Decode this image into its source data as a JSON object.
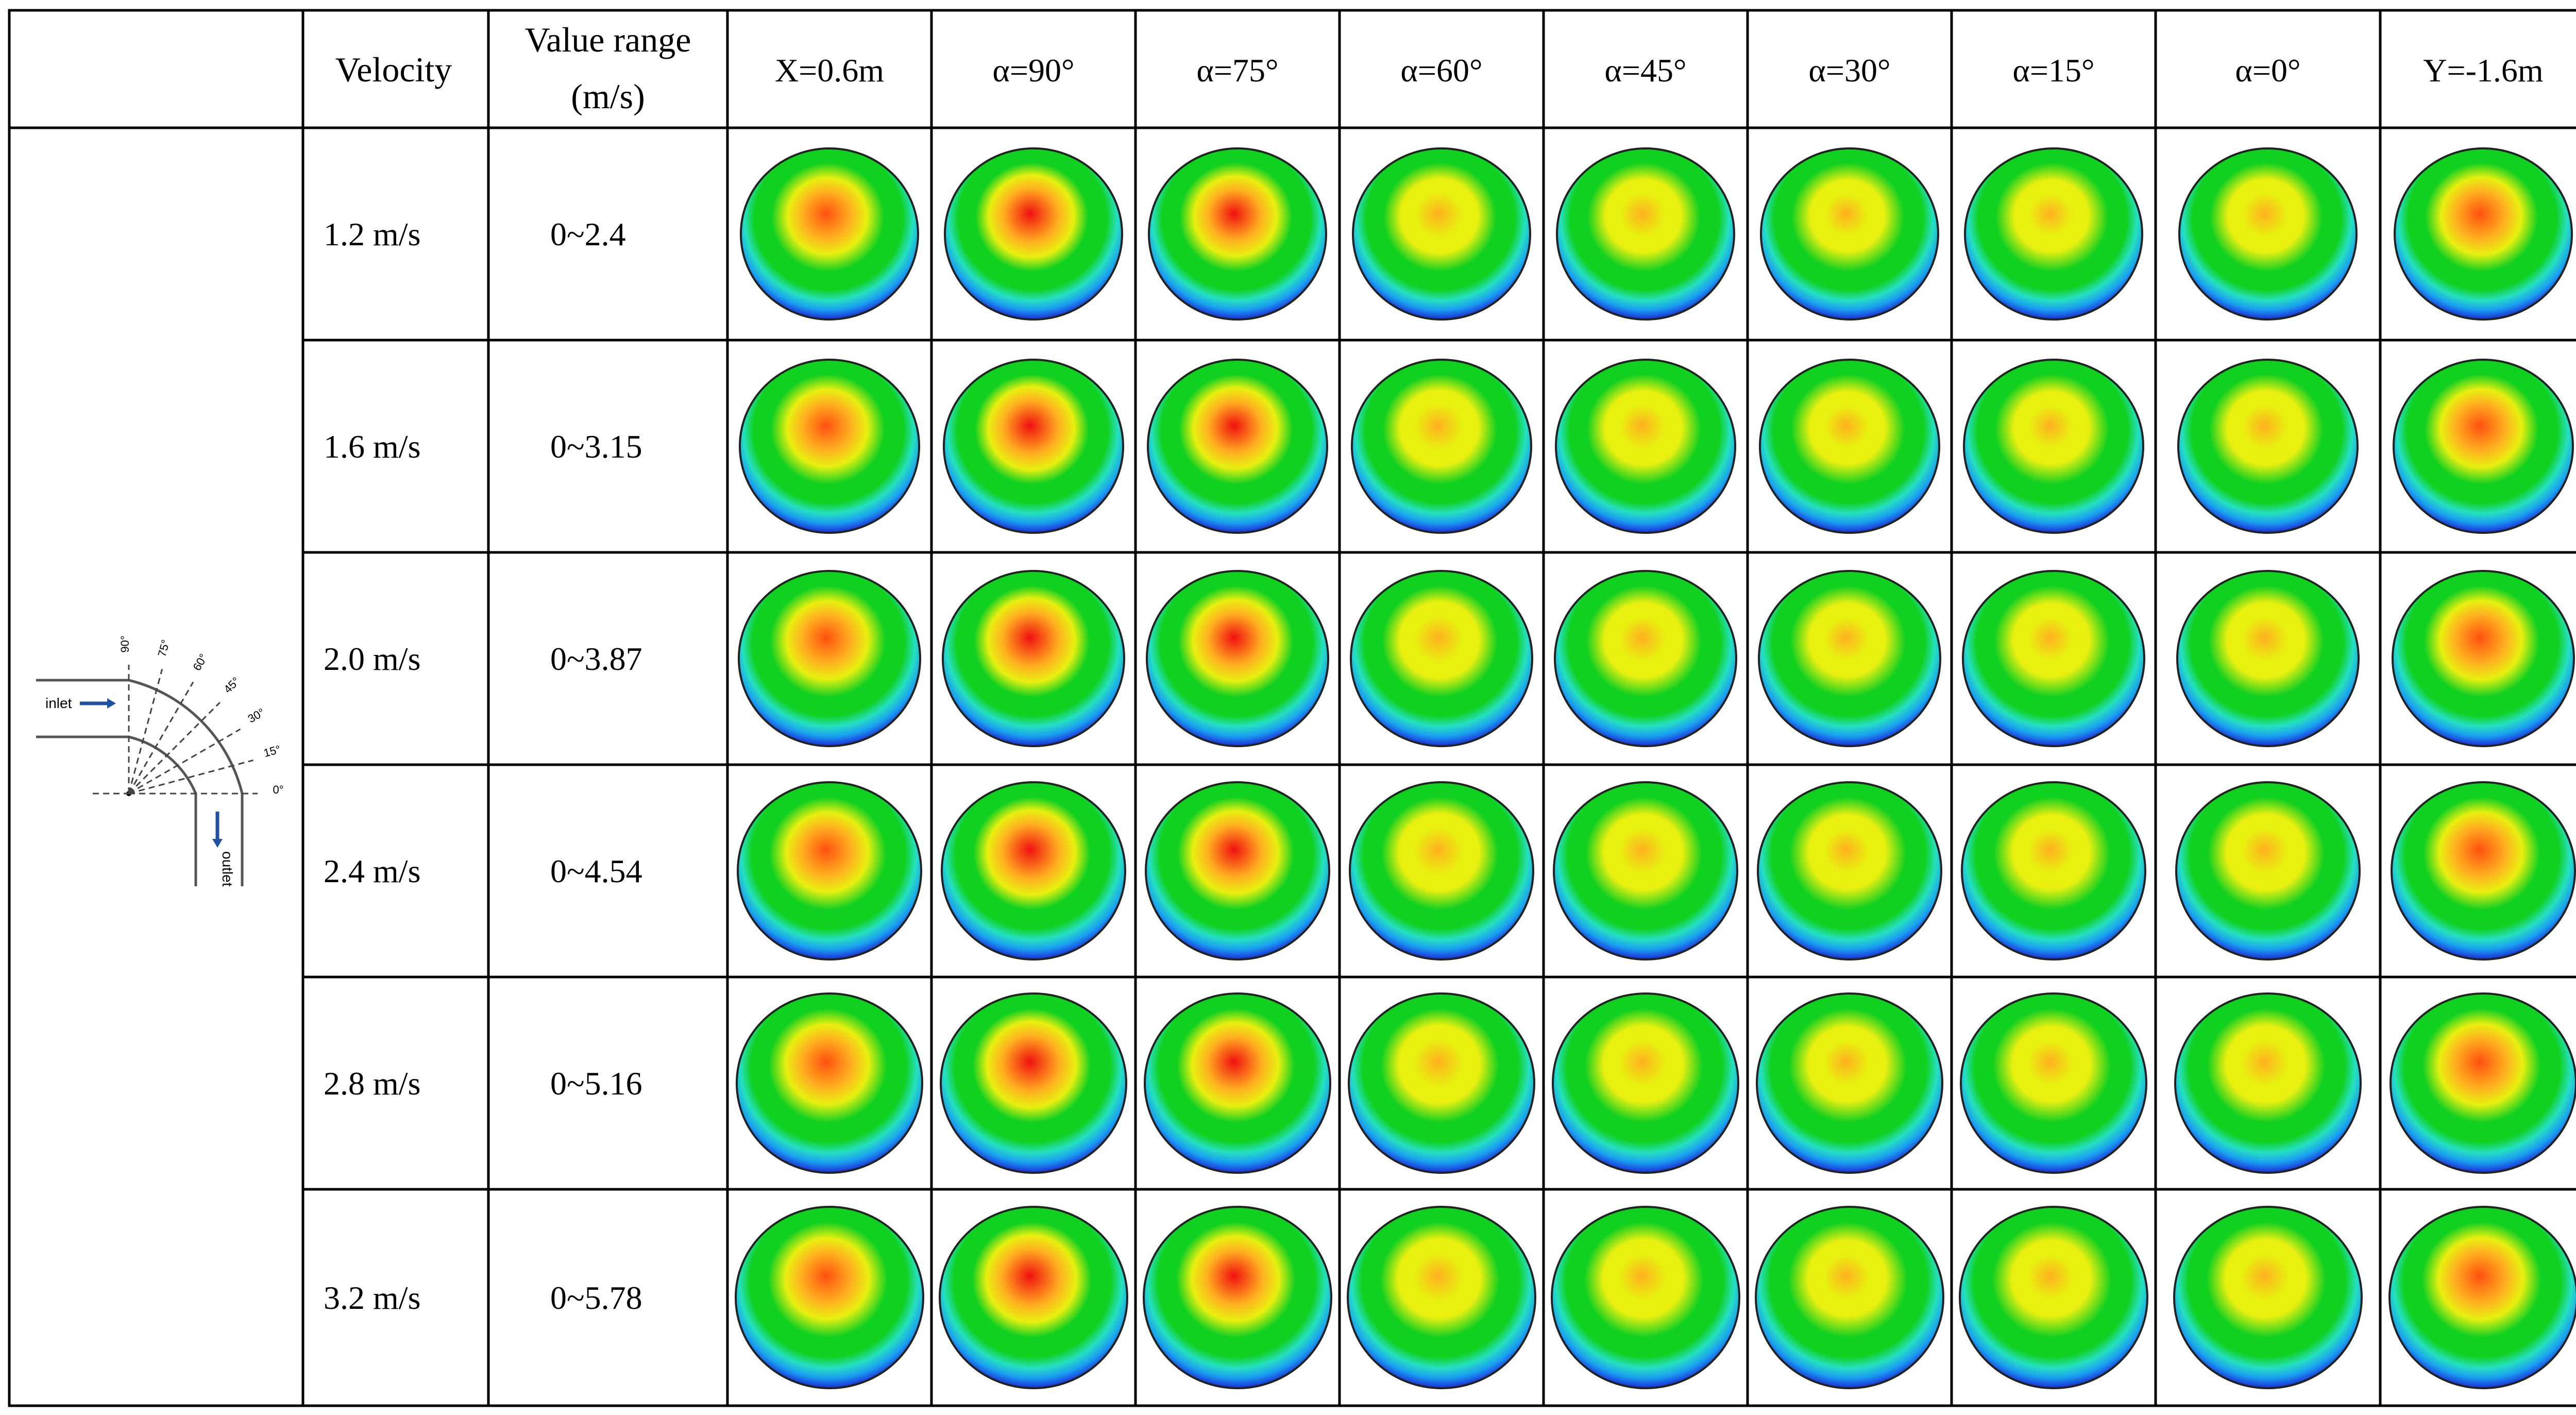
{
  "table": {
    "headers": {
      "velocity": "Velocity",
      "value_range_line1": "Value range",
      "value_range_line2": "(m/s)",
      "sections": [
        "X=0.6m",
        "α=90°",
        "α=75°",
        "α=60°",
        "α=45°",
        "α=30°",
        "α=15°",
        "α=0°",
        "Y=-1.6m"
      ]
    },
    "rows": [
      {
        "velocity": "1.2 m/s",
        "range": "0~2.4"
      },
      {
        "velocity": "1.6 m/s",
        "range": "0~3.15"
      },
      {
        "velocity": "2.0 m/s",
        "range": "0~3.87"
      },
      {
        "velocity": "2.4 m/s",
        "range": "0~4.54"
      },
      {
        "velocity": "2.8 m/s",
        "range": "0~5.16"
      },
      {
        "velocity": "3.2 m/s",
        "range": "0~5.78"
      }
    ],
    "section_intensity": [
      0.55,
      0.9,
      0.75,
      0.45,
      0.35,
      0.25,
      0.25,
      0.35,
      0.6
    ]
  },
  "diagram": {
    "inlet_label": "inlet",
    "outlet_label": "outlet",
    "angle_labels": [
      "90°",
      "75°",
      "60°",
      "45°",
      "30°",
      "15°",
      "0°"
    ]
  },
  "colors": {
    "border": "#000000",
    "contour": [
      "#1a2bd8",
      "#1aa0f0",
      "#26e0c0",
      "#10d020",
      "#e8f010",
      "#ffb020",
      "#ff5010",
      "#f01010"
    ],
    "arrow": "#2050a0"
  }
}
